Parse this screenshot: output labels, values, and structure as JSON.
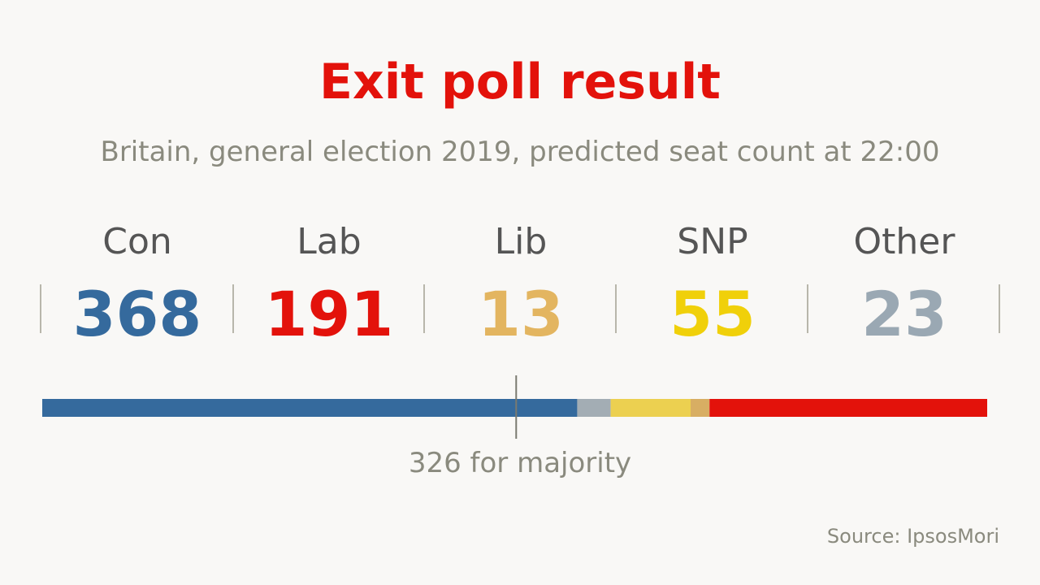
{
  "title": "Exit poll result",
  "subtitle": "Britain, general election 2019, predicted seat count at 22:00",
  "source": "Source: IpsosMori",
  "colors": {
    "title": "#e3120b",
    "con": "#356a9d",
    "lab": "#e3120b",
    "lib": "#e3b560",
    "snp": "#f0d00a",
    "other": "#9aa8b3",
    "majority_line": "#7a7a70"
  },
  "chart_data": {
    "type": "bar",
    "orientation": "horizontal-stacked",
    "title": "Exit poll result",
    "subtitle": "Britain, general election 2019, predicted seat count at 22:00",
    "total_seats": 650,
    "categories": [
      "Con",
      "Lab",
      "Lib",
      "SNP",
      "Other"
    ],
    "values": [
      368,
      191,
      13,
      55,
      23
    ],
    "series": [
      {
        "name": "Con",
        "value": 368,
        "display": "368",
        "color": "#356a9d",
        "bar_color": "#356a9d"
      },
      {
        "name": "Lab",
        "value": 191,
        "display": "191",
        "color": "#e3120b",
        "bar_color": "#e3120b"
      },
      {
        "name": "Lib",
        "value": 13,
        "display": "13",
        "color": "#e3b560",
        "bar_color": "#d8ae63"
      },
      {
        "name": "SNP",
        "value": 55,
        "display": "55",
        "color": "#f0d00a",
        "bar_color": "#ecd050"
      },
      {
        "name": "Other",
        "value": 23,
        "display": "23",
        "color": "#9aa8b3",
        "bar_color": "#a3adb4"
      }
    ],
    "bar_order": [
      "Con",
      "Other",
      "SNP",
      "Lib",
      "Lab"
    ],
    "majority": {
      "value": 326,
      "label": "326 for majority"
    }
  }
}
